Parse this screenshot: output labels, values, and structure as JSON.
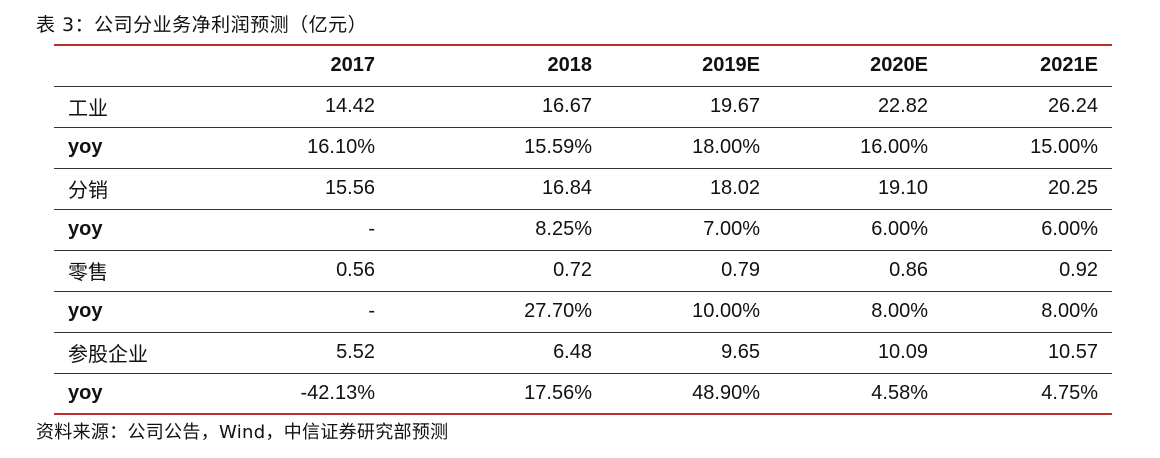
{
  "caption": "表 3：公司分业务净利润预测（亿元）",
  "source": "资料来源：公司公告，Wind，中信证券研究部预测",
  "table": {
    "header": [
      "",
      "2017",
      "2018",
      "2019E",
      "2020E",
      "2021E"
    ],
    "rows": [
      {
        "label": "工业",
        "values": [
          "14.42",
          "16.67",
          "19.67",
          "22.82",
          "26.24"
        ]
      },
      {
        "label": "yoy",
        "values": [
          "16.10%",
          "15.59%",
          "18.00%",
          "16.00%",
          "15.00%"
        ]
      },
      {
        "label": "分销",
        "values": [
          "15.56",
          "16.84",
          "18.02",
          "19.10",
          "20.25"
        ]
      },
      {
        "label": "yoy",
        "values": [
          "-",
          "8.25%",
          "7.00%",
          "6.00%",
          "6.00%"
        ]
      },
      {
        "label": "零售",
        "values": [
          "0.56",
          "0.72",
          "0.79",
          "0.86",
          "0.92"
        ]
      },
      {
        "label": "yoy",
        "values": [
          "-",
          "27.70%",
          "10.00%",
          "8.00%",
          "8.00%"
        ]
      },
      {
        "label": "参股企业",
        "values": [
          "5.52",
          "6.48",
          "9.65",
          "10.09",
          "10.57"
        ]
      },
      {
        "label": "yoy",
        "values": [
          "-42.13%",
          "17.56%",
          "48.90%",
          "4.58%",
          "4.75%"
        ]
      }
    ]
  },
  "colors": {
    "rule_accent": "#b8312f",
    "rule_row": "#333333",
    "text": "#111111"
  }
}
